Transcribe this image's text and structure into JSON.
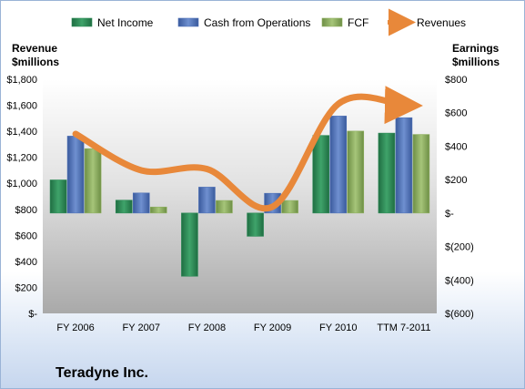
{
  "chart_data": {
    "type": "bar",
    "title": "Teradyne Inc.",
    "categories": [
      "FY 2006",
      "FY 2007",
      "FY 2008",
      "FY 2009",
      "FY 2010",
      "TTM 7-2011"
    ],
    "series": [
      {
        "name": "Net Income",
        "axis": "right",
        "kind": "bar",
        "color": "#2e8b57",
        "values": [
          198,
          77,
          -378,
          -139,
          464,
          478
        ]
      },
      {
        "name": "Cash from Operations",
        "axis": "right",
        "kind": "bar",
        "color": "#4f72b8",
        "values": [
          460,
          120,
          155,
          118,
          580,
          570
        ]
      },
      {
        "name": "FCF",
        "axis": "right",
        "kind": "bar",
        "color": "#8fb060",
        "values": [
          385,
          36,
          75,
          75,
          490,
          470
        ]
      },
      {
        "name": "Revenues",
        "axis": "left",
        "kind": "line",
        "color": "#e8883a",
        "values": [
          1380,
          1100,
          1110,
          820,
          1610,
          1600
        ]
      }
    ],
    "left_axis": {
      "label_line1": "Revenue",
      "label_line2": "$millions",
      "min": 0,
      "max": 1800,
      "step": 200,
      "ticks": [
        "$-",
        "$200",
        "$400",
        "$600",
        "$800",
        "$1,000",
        "$1,200",
        "$1,400",
        "$1,600",
        "$1,800"
      ]
    },
    "right_axis": {
      "label_line1": "Earnings",
      "label_line2": "$millions",
      "min": -600,
      "max": 800,
      "step": 200,
      "ticks": [
        "$(600)",
        "$(400)",
        "$(200)",
        "$-",
        "$200",
        "$400",
        "$600",
        "$800"
      ]
    },
    "legend_position": "top",
    "grid": false
  }
}
